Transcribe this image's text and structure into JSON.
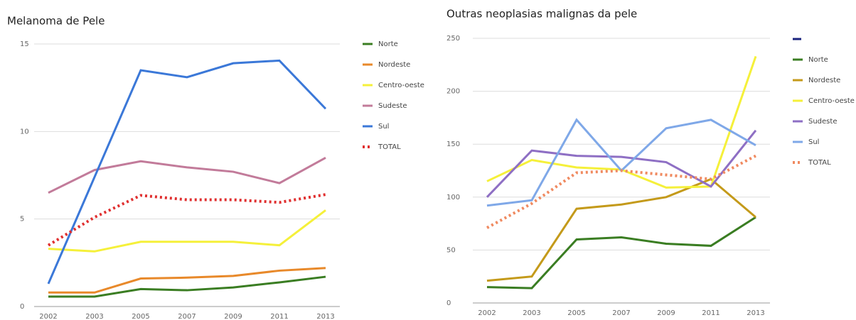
{
  "chart_data": [
    {
      "type": "line",
      "title": "Melanoma de Pele",
      "categories": [
        "2002",
        "2003",
        "2005",
        "2007",
        "2009",
        "2011",
        "2013"
      ],
      "ylim": [
        0,
        15
      ],
      "yticks": [
        0,
        5,
        10,
        15
      ],
      "grid": true,
      "series": [
        {
          "name": "Norte",
          "color": "#3a7d22",
          "values": [
            0.57,
            0.57,
            1.0,
            0.93,
            1.09,
            1.38,
            1.7
          ]
        },
        {
          "name": "Nordeste",
          "color": "#e8892a",
          "values": [
            0.8,
            0.8,
            1.6,
            1.65,
            1.75,
            2.05,
            2.2
          ]
        },
        {
          "name": "Centro-oeste",
          "color": "#f5f03a",
          "values": [
            3.3,
            3.15,
            3.7,
            3.7,
            3.7,
            3.5,
            5.5
          ]
        },
        {
          "name": "Sudeste",
          "color": "#c27b9a",
          "values": [
            6.5,
            7.8,
            8.3,
            7.95,
            7.7,
            7.05,
            8.5
          ]
        },
        {
          "name": "Sul",
          "color": "#3b78d8",
          "values": [
            1.3,
            7.4,
            13.5,
            13.1,
            13.9,
            14.05,
            11.3
          ]
        },
        {
          "name": "TOTAL",
          "color": "#e03030",
          "style": "dotted",
          "values": [
            3.5,
            5.1,
            6.35,
            6.1,
            6.1,
            5.95,
            6.4
          ]
        }
      ]
    },
    {
      "type": "line",
      "title": "Outras neoplasias malignas da pele",
      "categories": [
        "2002",
        "2003",
        "2005",
        "2007",
        "2009",
        "2011",
        "2013"
      ],
      "ylim": [
        0,
        250
      ],
      "yticks": [
        0,
        50,
        100,
        150,
        200,
        250
      ],
      "grid": true,
      "series": [
        {
          "name": "Norte",
          "color": "#3a7d22",
          "values": [
            15,
            14,
            60,
            62,
            56,
            54,
            81
          ]
        },
        {
          "name": "Nordeste",
          "color": "#c49a1a",
          "values": [
            21,
            25,
            89,
            93,
            100,
            117,
            81
          ]
        },
        {
          "name": "Centro-oeste",
          "color": "#f5f03a",
          "values": [
            115,
            135,
            128,
            126,
            109,
            110,
            233
          ]
        },
        {
          "name": "Sudeste",
          "color": "#8e6fc4",
          "values": [
            100,
            144,
            139,
            138,
            133,
            110,
            163
          ]
        },
        {
          "name": "Sul",
          "color": "#7fa8e8",
          "values": [
            92,
            97,
            173,
            125,
            165,
            173,
            149
          ]
        },
        {
          "name": "TOTAL",
          "color": "#f08a60",
          "style": "dotted",
          "values": [
            71,
            94,
            123,
            125,
            121,
            117,
            139
          ]
        }
      ]
    }
  ]
}
